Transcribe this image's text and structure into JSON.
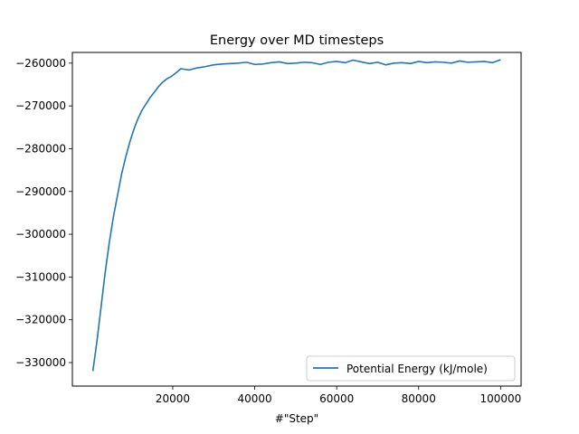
{
  "chart_data": {
    "type": "line",
    "title": "Energy over MD timesteps",
    "xlabel": "#\"Step\"",
    "ylabel": "",
    "xlim": [
      -4500,
      105000
    ],
    "ylim": [
      -335500,
      -257500
    ],
    "x_ticks": [
      20000,
      40000,
      60000,
      80000,
      100000
    ],
    "x_tick_labels": [
      "20000",
      "40000",
      "60000",
      "80000",
      "100000"
    ],
    "y_ticks": [
      -330000,
      -320000,
      -310000,
      -300000,
      -290000,
      -280000,
      -270000,
      -260000
    ],
    "y_tick_labels": [
      "−330000",
      "−320000",
      "−310000",
      "−300000",
      "−290000",
      "−280000",
      "−270000",
      "−260000"
    ],
    "grid": false,
    "legend_position": "lower-right",
    "series": [
      {
        "name": "Potential Energy (kJ/mole)",
        "color": "#1f77b4",
        "x": [
          500,
          1500,
          2500,
          3500,
          4500,
          5500,
          6500,
          7500,
          8500,
          9500,
          10500,
          11500,
          12500,
          13500,
          14500,
          15500,
          16500,
          17500,
          18500,
          19500,
          20500,
          22000,
          24000,
          26000,
          28000,
          30000,
          32000,
          34000,
          36000,
          38000,
          40000,
          42000,
          44000,
          46000,
          48000,
          50000,
          52000,
          54000,
          56000,
          58000,
          60000,
          62000,
          64000,
          66000,
          68000,
          70000,
          72000,
          74000,
          76000,
          78000,
          80000,
          82000,
          84000,
          86000,
          88000,
          90000,
          92000,
          94000,
          96000,
          98000,
          100000
        ],
        "values": [
          -332000,
          -325000,
          -317000,
          -309000,
          -302000,
          -296000,
          -291000,
          -286000,
          -282000,
          -278500,
          -275500,
          -273000,
          -271000,
          -269500,
          -268000,
          -266800,
          -265500,
          -264500,
          -263700,
          -263200,
          -262500,
          -261300,
          -261600,
          -261100,
          -260800,
          -260400,
          -260200,
          -260100,
          -260000,
          -259800,
          -260300,
          -260200,
          -259900,
          -259700,
          -260100,
          -260000,
          -259800,
          -259900,
          -260300,
          -259800,
          -259600,
          -259900,
          -259300,
          -259700,
          -260100,
          -259800,
          -260400,
          -260000,
          -259900,
          -260100,
          -259600,
          -259900,
          -259700,
          -259800,
          -260000,
          -259500,
          -259800,
          -259700,
          -259600,
          -259900,
          -259200
        ]
      }
    ]
  }
}
